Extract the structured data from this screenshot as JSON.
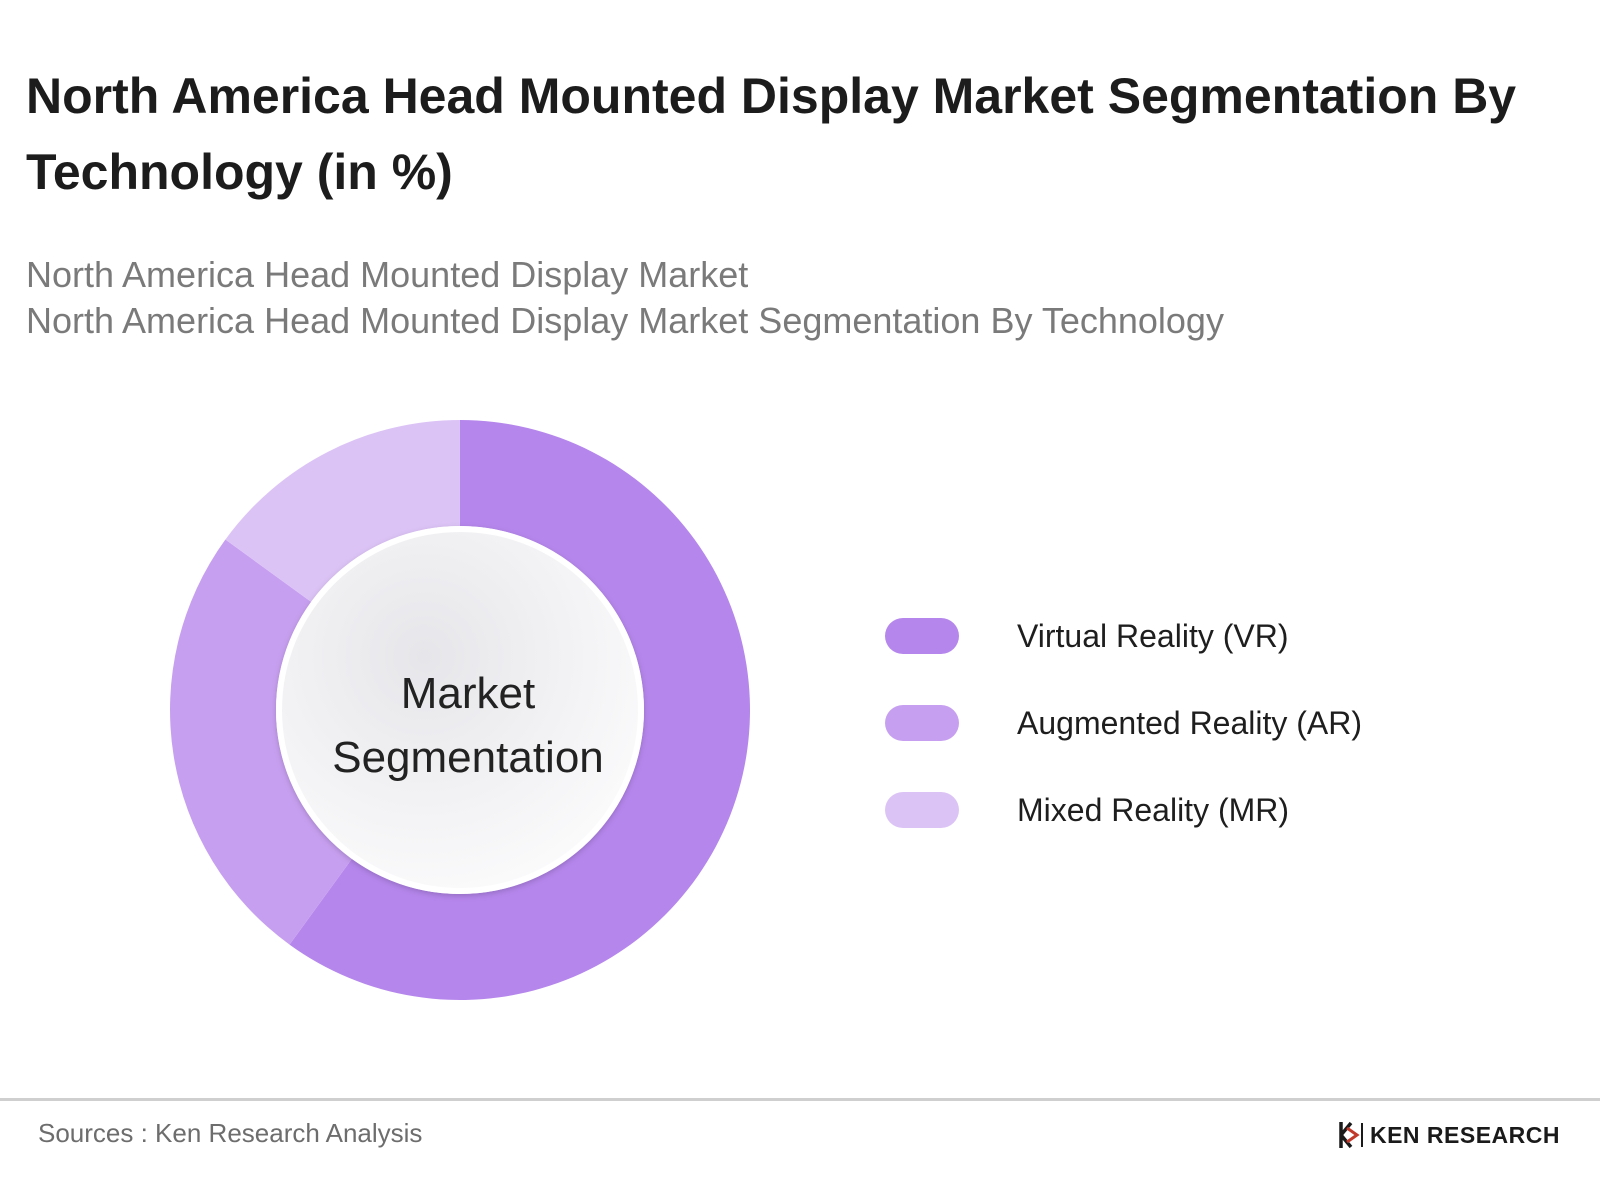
{
  "header": {
    "title": "North America Head Mounted Display Market Segmentation By Technology (in %)",
    "subtitle_line1": "North America Head Mounted Display Market",
    "subtitle_line2": "North America Head Mounted Display Market Segmentation By Technology"
  },
  "chart_data": {
    "type": "pie",
    "variant": "donut",
    "center_label_line1": "Market",
    "center_label_line2": "Segmentation",
    "legend_placement": "right",
    "start_angle_deg": 0,
    "direction": "clockwise",
    "slices": [
      {
        "label": "Virtual Reality (VR)",
        "value": 60,
        "color": "#b586ec"
      },
      {
        "label": "Augmented Reality (AR)",
        "value": 25,
        "color": "#c79ff0"
      },
      {
        "label": "Mixed Reality (MR)",
        "value": 15,
        "color": "#dcc3f6"
      }
    ]
  },
  "footer": {
    "source": "Sources : Ken Research Analysis",
    "brand": "KEN RESEARCH",
    "brand_icon": "ken-research-logo-icon"
  }
}
